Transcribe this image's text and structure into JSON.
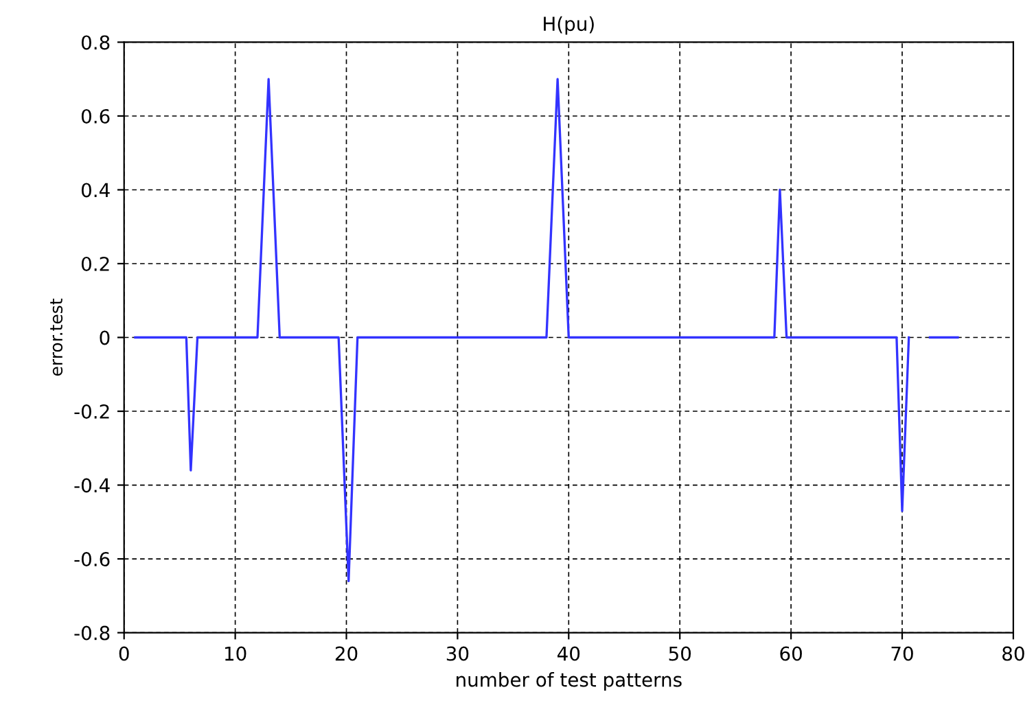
{
  "chart_data": {
    "type": "line",
    "title": "H(pu)",
    "xlabel": "number of test patterns",
    "ylabel": "error.test",
    "x": [
      1,
      5.6,
      6.0,
      6.6,
      12,
      13,
      14,
      19.3,
      20.2,
      21,
      38,
      39,
      40,
      58.5,
      59,
      59.6,
      69.5,
      70,
      70.6,
      71.5,
      72.5,
      75
    ],
    "series": [
      {
        "color": "#3333ff",
        "values": [
          0,
          0,
          -0.36,
          0,
          0,
          0.7,
          0,
          0,
          -0.66,
          0,
          0,
          0.7,
          0,
          0,
          0.4,
          0,
          0,
          -0.47,
          0,
          null,
          0,
          0
        ]
      }
    ],
    "xlim": [
      0,
      80
    ],
    "xticks": [
      0,
      10,
      20,
      30,
      40,
      50,
      60,
      70,
      80
    ],
    "ylim": [
      -0.8,
      0.8
    ],
    "yticks": [
      -0.8,
      -0.6,
      -0.4,
      -0.2,
      0,
      0.2,
      0.4,
      0.6,
      0.8
    ],
    "grid": true,
    "marker": "none",
    "line_style": "solid"
  }
}
